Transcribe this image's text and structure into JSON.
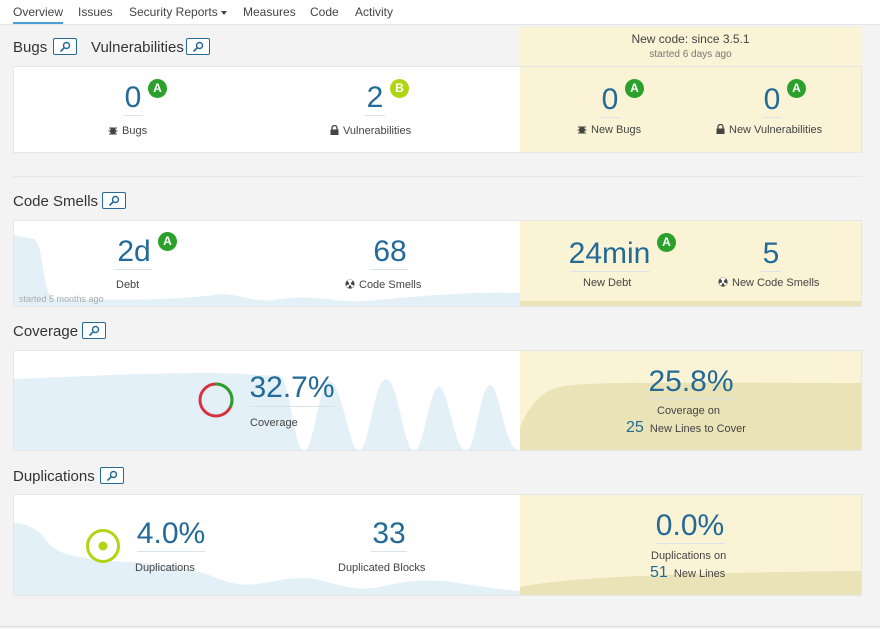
{
  "nav": {
    "items": [
      "Overview",
      "Issues",
      "Security Reports",
      "Measures",
      "Code",
      "Activity"
    ]
  },
  "leak_period": {
    "title": "New code: since 3.5.1",
    "started": "started 6 days ago"
  },
  "bugs_section": {
    "title_bugs": "Bugs",
    "title_vulns": "Vulnerabilities",
    "bugs": {
      "value": "0",
      "rating": "A",
      "label": "Bugs"
    },
    "vulnerabilities": {
      "value": "2",
      "rating": "B",
      "label": "Vulnerabilities"
    },
    "new_bugs": {
      "value": "0",
      "rating": "A",
      "label": "New Bugs"
    },
    "new_vulnerabilities": {
      "value": "0",
      "rating": "A",
      "label": "New Vulnerabilities"
    }
  },
  "code_smells_section": {
    "title": "Code Smells",
    "debt": {
      "value": "2d",
      "rating": "A",
      "label": "Debt"
    },
    "smells": {
      "value": "68",
      "label": "Code Smells"
    },
    "new_debt": {
      "value": "24min",
      "rating": "A",
      "label": "New Debt"
    },
    "new_smells": {
      "value": "5",
      "label": "New Code Smells"
    },
    "history_note": "started 5 months ago"
  },
  "coverage_section": {
    "title": "Coverage",
    "coverage": {
      "value": "32.7%",
      "label": "Coverage",
      "fraction": 0.327
    },
    "new_coverage": {
      "value": "25.8%",
      "label": "Coverage on",
      "lines_value": "25",
      "lines_label": "New Lines to Cover"
    }
  },
  "duplications_section": {
    "title": "Duplications",
    "duplications": {
      "value": "4.0%",
      "label": "Duplications"
    },
    "blocks": {
      "value": "33",
      "label": "Duplicated Blocks"
    },
    "new_duplications": {
      "value": "0.0%",
      "label": "Duplications on",
      "lines_value": "51",
      "lines_label": "New Lines"
    }
  },
  "colors": {
    "link": "#236a97",
    "leak_bg": "#fbf3d5",
    "rating_a": "#2ca02c",
    "rating_b": "#b0d513",
    "history_blue": "#e4f0f8",
    "history_leak": "#ebe3b8"
  }
}
